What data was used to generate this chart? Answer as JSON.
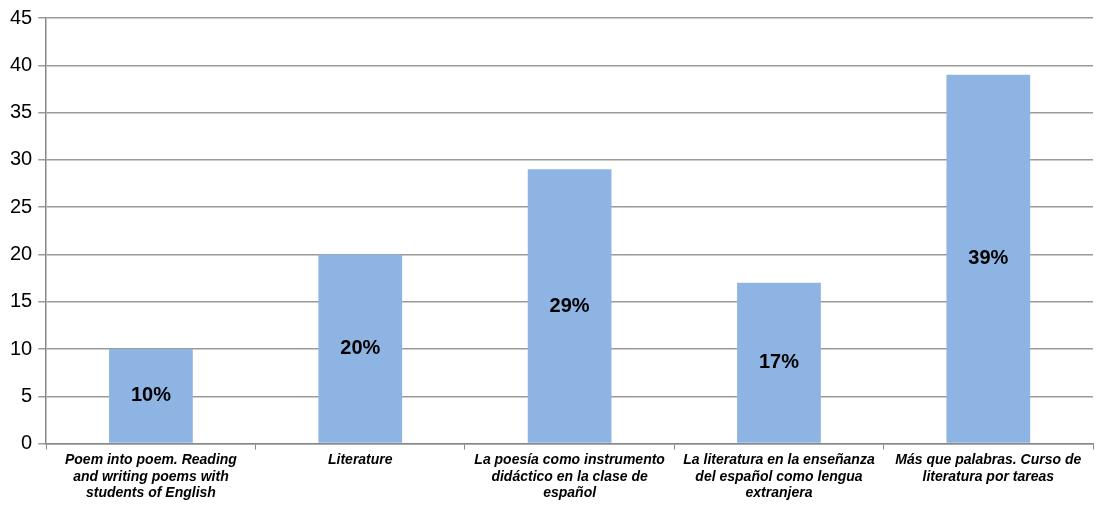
{
  "chart_data": {
    "type": "bar",
    "categories": [
      "Poem into poem. Reading and writing poems with students of English",
      "Literature",
      "La poesía como instrumento didáctico en la clase de español",
      "La literatura en la enseñanza del español como lengua extranjera",
      "Más que palabras. Curso de literatura por tareas"
    ],
    "values": [
      10,
      20,
      29,
      17,
      39
    ],
    "color": "#8eb4e3",
    "value_labels": [
      "10%",
      "20%",
      "29%",
      "17%",
      "39%"
    ],
    "ylim": [
      0,
      45
    ],
    "yticks": [
      0,
      5,
      10,
      15,
      20,
      25,
      30,
      35,
      40,
      45
    ],
    "grid": "y",
    "legend": false
  }
}
